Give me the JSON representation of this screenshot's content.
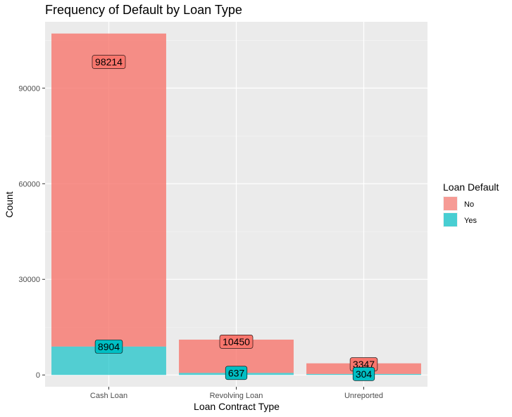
{
  "chart_data": {
    "type": "bar",
    "stacked": true,
    "title": "Frequency of Default by Loan Type",
    "xlabel": "Loan Contract Type",
    "ylabel": "Count",
    "categories": [
      "Cash Loan",
      "Revolving Loan",
      "Unreported"
    ],
    "series": [
      {
        "name": "No",
        "values": [
          98214,
          10450,
          3347
        ],
        "color": "#F8766D"
      },
      {
        "name": "Yes",
        "values": [
          8904,
          637,
          304
        ],
        "color": "#00BFC4"
      }
    ],
    "y_ticks": [
      0,
      30000,
      60000,
      90000
    ],
    "ylim": [
      -3700,
      110800
    ],
    "grid": true,
    "legend": {
      "title": "Loan Default",
      "position": "right"
    }
  }
}
